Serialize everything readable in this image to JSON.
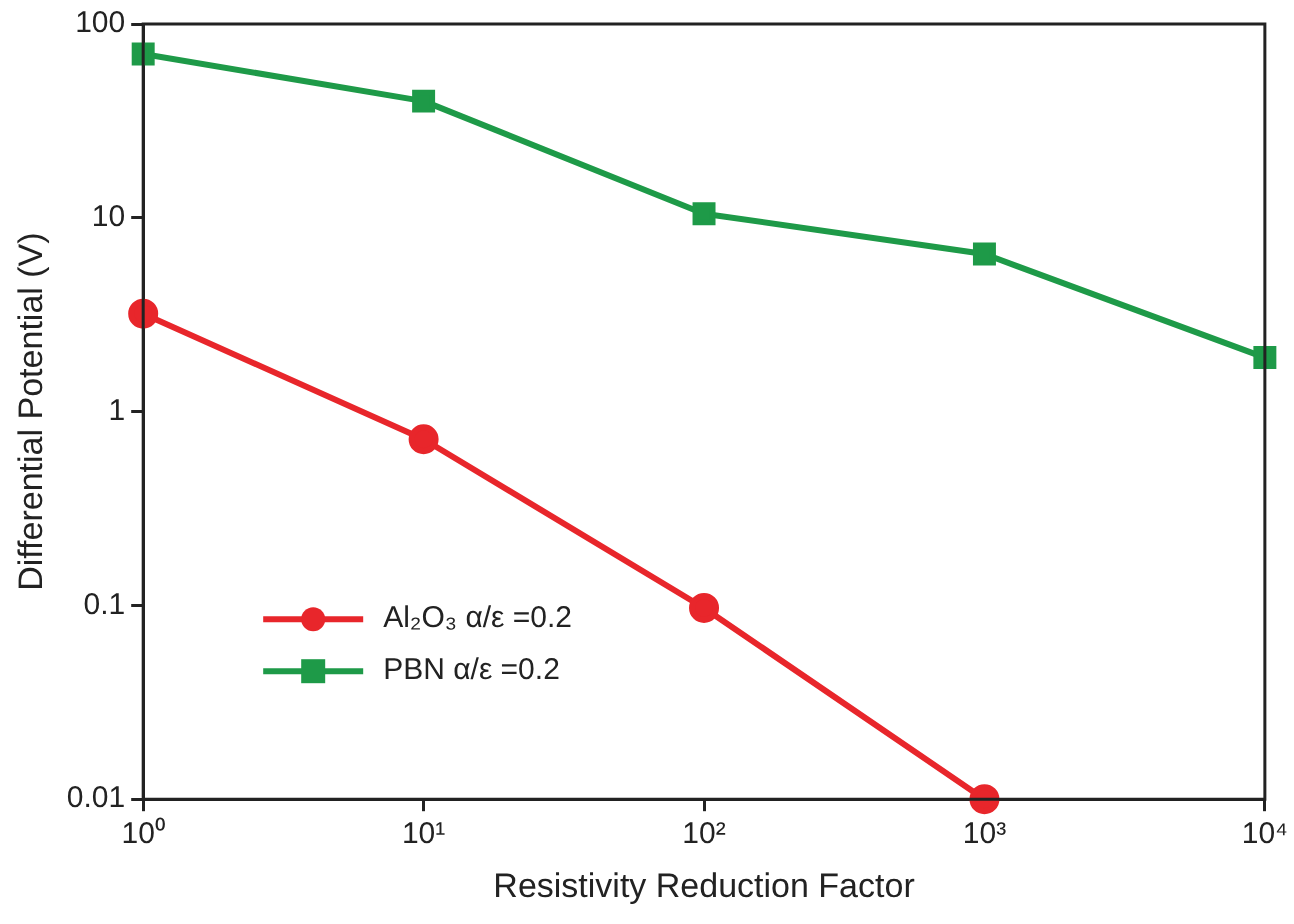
{
  "chart_data": {
    "type": "line",
    "xlabel": "Resistivity Reduction Factor",
    "ylabel": "Differential Potential (V)",
    "log": "xy",
    "grid": false,
    "legend": "bottom left",
    "line_style": "solid",
    "xlim": [
      1,
      10000
    ],
    "xticks": [
      {
        "value": 1,
        "label": "10⁰"
      },
      {
        "value": 10,
        "label": "10¹"
      },
      {
        "value": 100,
        "label": "10²"
      },
      {
        "value": 1000,
        "label": "10³"
      },
      {
        "value": 10000,
        "label": "10⁴"
      }
    ],
    "ylim": [
      0.01,
      100
    ],
    "yticks": [
      0.01,
      0.1,
      1,
      10,
      100
    ],
    "series": [
      {
        "name": "Al₂O₃ α/ε =0.2",
        "color": "#e8262b",
        "marker": "circle",
        "x": [
          1,
          10,
          100,
          1000
        ],
        "values": [
          3.2,
          0.72,
          0.097,
          0.01
        ]
      },
      {
        "name": "PBN α/ε =0.2",
        "color": "#1e9a48",
        "marker": "square",
        "x": [
          1,
          10,
          100,
          1000,
          10000
        ],
        "values": [
          70,
          40,
          10.5,
          6.5,
          1.9
        ]
      }
    ]
  }
}
